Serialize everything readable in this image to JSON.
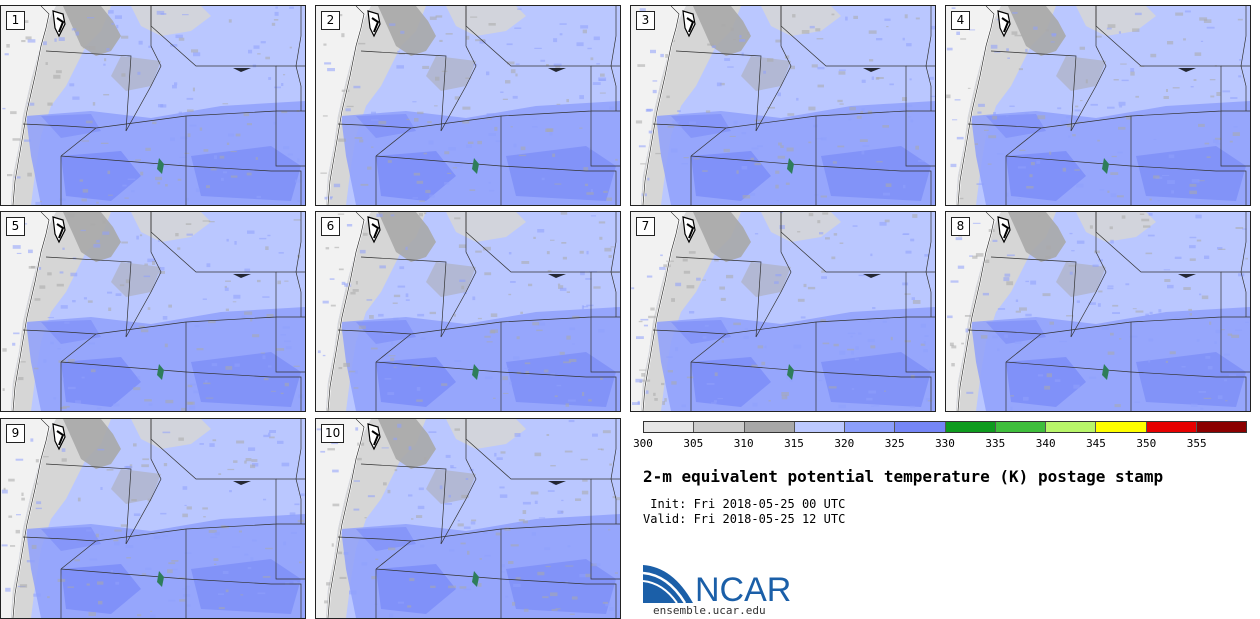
{
  "panels": [
    {
      "label": "1"
    },
    {
      "label": "2"
    },
    {
      "label": "3"
    },
    {
      "label": "4"
    },
    {
      "label": "5"
    },
    {
      "label": "6"
    },
    {
      "label": "7"
    },
    {
      "label": "8"
    },
    {
      "label": "9"
    },
    {
      "label": "10"
    }
  ],
  "colorbar": {
    "ticks": [
      "300",
      "305",
      "310",
      "315",
      "320",
      "325",
      "330",
      "335",
      "340",
      "345",
      "350",
      "355"
    ],
    "colors": [
      "#e6e6e6",
      "#cccccc",
      "#a8a8a8",
      "#bcc9ff",
      "#8c9ffb",
      "#7586f6",
      "#0e9b1e",
      "#3fbe3c",
      "#b8f56a",
      "#ffff00",
      "#e60000",
      "#8b0000"
    ]
  },
  "title": "2-m equivalent potential temperature (K) postage stamp",
  "init_text": " Init: Fri 2018-05-25 00 UTC",
  "valid_text": "Valid: Fri 2018-05-25 12 UTC",
  "logo": {
    "text": "NCAR",
    "url": "ensemble.ucar.edu"
  },
  "map_colors": {
    "ocean": "#f2f2f2",
    "coast_gray": "#d6d6d6",
    "dark_gray": "#a9a9a9",
    "light_blue": "#bac7ff",
    "mid_blue": "#8fa0fb",
    "dark_blue": "#7b8cf7",
    "lake": "#2e7d5a",
    "border": "#333333",
    "logo_blue": "#1b5fa8"
  }
}
